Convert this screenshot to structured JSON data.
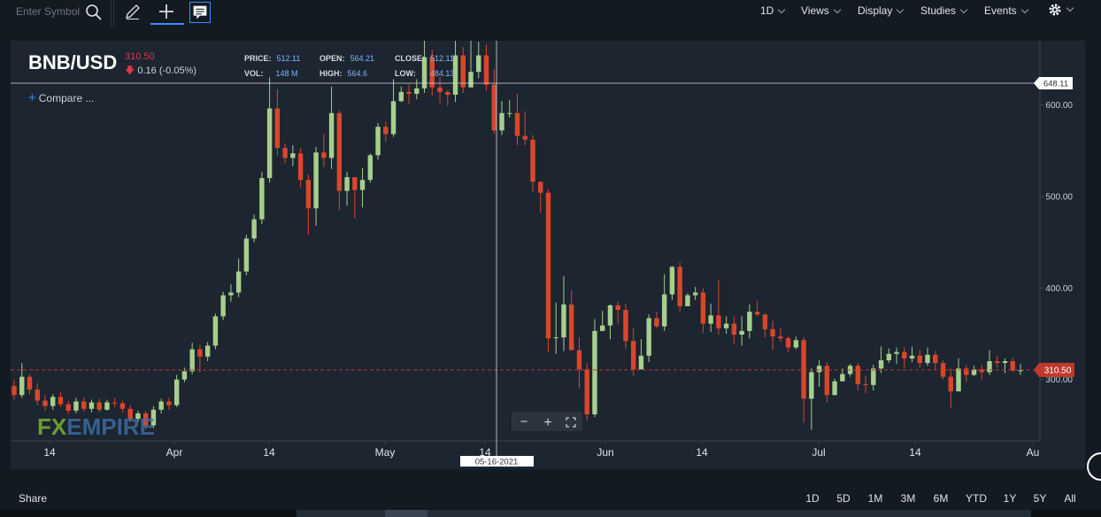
{
  "toolbar": {
    "search_placeholder": "Enter Symbol",
    "menus": [
      {
        "label": "1D"
      },
      {
        "label": "Views"
      },
      {
        "label": "Display"
      },
      {
        "label": "Studies"
      },
      {
        "label": "Events"
      }
    ]
  },
  "header": {
    "symbol": "BNB/USD",
    "last_price": "310.50",
    "change": "0.16 (-0.05%)",
    "ohlc": {
      "price_label": "PRICE:",
      "price": "512.11",
      "open_label": "OPEN:",
      "open": "564.21",
      "close_label": "CLOSE:",
      "close": "512.11",
      "vol_label": "VOL:",
      "vol": "148 M",
      "high_label": "HIGH:",
      "high": "564.6",
      "low_label": "LOW:",
      "low": "484.13"
    },
    "compare_label": "Compare ..."
  },
  "chart_data": {
    "type": "candlestick",
    "y_ticks": [
      "600.00",
      "500.00",
      "400.00",
      "300.00"
    ],
    "y_range": [
      233,
      670
    ],
    "x_ticks": [
      "14",
      "Apr",
      "14",
      "May",
      "14",
      "Jun",
      "14",
      "Jul",
      "14",
      "Au"
    ],
    "crosshair_date": "05-16-2021",
    "crosshair_price": "648.11",
    "last_price_label": "310.50",
    "last_price_value": 310.5,
    "colors": {
      "up": "#a6cf8c",
      "down": "#d9472b",
      "price_line": "#c0392b"
    },
    "candles": [
      [
        293,
        283,
        300,
        278
      ],
      [
        283,
        303,
        318,
        280
      ],
      [
        303,
        289,
        306,
        284
      ],
      [
        289,
        277,
        296,
        272
      ],
      [
        277,
        271,
        283,
        266
      ],
      [
        271,
        281,
        284,
        267
      ],
      [
        281,
        273,
        286,
        270
      ],
      [
        273,
        266,
        277,
        262
      ],
      [
        266,
        276,
        280,
        263
      ],
      [
        276,
        268,
        281,
        265
      ],
      [
        268,
        275,
        278,
        264
      ],
      [
        275,
        267,
        279,
        264
      ],
      [
        267,
        275,
        278,
        266
      ],
      [
        275,
        274,
        280,
        270
      ],
      [
        274,
        268,
        277,
        264
      ],
      [
        268,
        257,
        272,
        253
      ],
      [
        257,
        263,
        266,
        254
      ],
      [
        263,
        250,
        266,
        246
      ],
      [
        250,
        267,
        271,
        247
      ],
      [
        267,
        276,
        279,
        263
      ],
      [
        276,
        272,
        280,
        267
      ],
      [
        272,
        300,
        305,
        270
      ],
      [
        300,
        309,
        313,
        297
      ],
      [
        309,
        333,
        340,
        306
      ],
      [
        333,
        325,
        338,
        308
      ],
      [
        325,
        337,
        341,
        320
      ],
      [
        337,
        369,
        372,
        333
      ],
      [
        369,
        392,
        396,
        365
      ],
      [
        392,
        395,
        404,
        385
      ],
      [
        395,
        418,
        432,
        390
      ],
      [
        418,
        454,
        458,
        414
      ],
      [
        454,
        475,
        480,
        450
      ],
      [
        475,
        520,
        527,
        470
      ],
      [
        520,
        596,
        630,
        515
      ],
      [
        596,
        553,
        617,
        545
      ],
      [
        553,
        542,
        558,
        536
      ],
      [
        542,
        547,
        556,
        533
      ],
      [
        547,
        518,
        553,
        510
      ],
      [
        518,
        487,
        524,
        458
      ],
      [
        487,
        548,
        554,
        468
      ],
      [
        548,
        542,
        568,
        532
      ],
      [
        542,
        591,
        620,
        530
      ],
      [
        591,
        506,
        594,
        485
      ],
      [
        506,
        521,
        527,
        490
      ],
      [
        521,
        507,
        521,
        476
      ],
      [
        507,
        518,
        531,
        488
      ],
      [
        518,
        545,
        547,
        515
      ],
      [
        545,
        576,
        580,
        540
      ],
      [
        576,
        568,
        582,
        559
      ],
      [
        568,
        604,
        628,
        565
      ],
      [
        604,
        614,
        620,
        603
      ],
      [
        614,
        612,
        622,
        601
      ],
      [
        612,
        618,
        628,
        606
      ],
      [
        618,
        652,
        685,
        613
      ],
      [
        652,
        619,
        660,
        610
      ],
      [
        619,
        614,
        631,
        602
      ],
      [
        614,
        611,
        616,
        599
      ],
      [
        611,
        654,
        680,
        603
      ],
      [
        654,
        619,
        663,
        613
      ],
      [
        619,
        636,
        674,
        620
      ],
      [
        636,
        654,
        669,
        629
      ],
      [
        654,
        622,
        666,
        615
      ],
      [
        622,
        572,
        639,
        568
      ],
      [
        572,
        591,
        604,
        567
      ],
      [
        591,
        591,
        605,
        586
      ],
      [
        591,
        566,
        612,
        556
      ],
      [
        566,
        562,
        593,
        556
      ],
      [
        562,
        516,
        567,
        505
      ],
      [
        516,
        504,
        505,
        482
      ],
      [
        504,
        345,
        508,
        330
      ],
      [
        345,
        346,
        384,
        328
      ],
      [
        346,
        382,
        413,
        331
      ],
      [
        382,
        332,
        398,
        335
      ],
      [
        332,
        311,
        346,
        290
      ],
      [
        311,
        262,
        318,
        255
      ],
      [
        262,
        353,
        366,
        259
      ],
      [
        353,
        359,
        375,
        357
      ],
      [
        359,
        381,
        382,
        344
      ],
      [
        381,
        376,
        385,
        361
      ],
      [
        376,
        342,
        383,
        334
      ],
      [
        342,
        311,
        356,
        304
      ],
      [
        311,
        326,
        344,
        317
      ],
      [
        326,
        367,
        371,
        319
      ],
      [
        367,
        358,
        374,
        356
      ],
      [
        358,
        393,
        415,
        353
      ],
      [
        393,
        423,
        424,
        387
      ],
      [
        423,
        380,
        428,
        374
      ],
      [
        380,
        392,
        394,
        383
      ],
      [
        392,
        395,
        401,
        387
      ],
      [
        395,
        361,
        400,
        351
      ],
      [
        361,
        370,
        383,
        352
      ],
      [
        370,
        356,
        409,
        349
      ],
      [
        356,
        361,
        369,
        350
      ],
      [
        361,
        349,
        369,
        339
      ],
      [
        349,
        353,
        369,
        337
      ],
      [
        353,
        374,
        382,
        345
      ],
      [
        374,
        371,
        386,
        369
      ],
      [
        371,
        355,
        372,
        346
      ],
      [
        355,
        347,
        364,
        332
      ],
      [
        347,
        345,
        356,
        341
      ],
      [
        345,
        335,
        347,
        330
      ],
      [
        335,
        343,
        347,
        333
      ],
      [
        343,
        279,
        346,
        253
      ],
      [
        279,
        308,
        312,
        245
      ],
      [
        308,
        315,
        321,
        292
      ],
      [
        315,
        283,
        319,
        275
      ],
      [
        283,
        298,
        301,
        283
      ],
      [
        298,
        306,
        312,
        300
      ],
      [
        306,
        315,
        317,
        303
      ],
      [
        315,
        295,
        318,
        288
      ],
      [
        295,
        294,
        304,
        285
      ],
      [
        294,
        312,
        316,
        288
      ],
      [
        312,
        321,
        336,
        307
      ],
      [
        321,
        328,
        334,
        318
      ],
      [
        328,
        330,
        335,
        317
      ],
      [
        330,
        323,
        335,
        312
      ],
      [
        323,
        326,
        336,
        319
      ],
      [
        326,
        318,
        332,
        313
      ],
      [
        318,
        327,
        335,
        315
      ],
      [
        327,
        318,
        331,
        310
      ],
      [
        318,
        303,
        321,
        300
      ],
      [
        303,
        287,
        312,
        269
      ],
      [
        287,
        312,
        323,
        295
      ],
      [
        312,
        305,
        316,
        297
      ],
      [
        305,
        311,
        315,
        304
      ],
      [
        311,
        308,
        316,
        300
      ],
      [
        308,
        320,
        332,
        305
      ],
      [
        320,
        318,
        326,
        313
      ],
      [
        318,
        320,
        323,
        307
      ],
      [
        320,
        310,
        324,
        308
      ],
      [
        310,
        310,
        317,
        305
      ]
    ]
  },
  "zoom_controls": {
    "minus": "−",
    "plus": "+"
  },
  "footer": {
    "share_label": "Share",
    "ranges": [
      "1D",
      "5D",
      "1M",
      "3M",
      "6M",
      "YTD",
      "1Y",
      "5Y",
      "All"
    ]
  },
  "branding": {
    "logo_fx": "FX",
    "logo_empire": "EMPIRE"
  }
}
